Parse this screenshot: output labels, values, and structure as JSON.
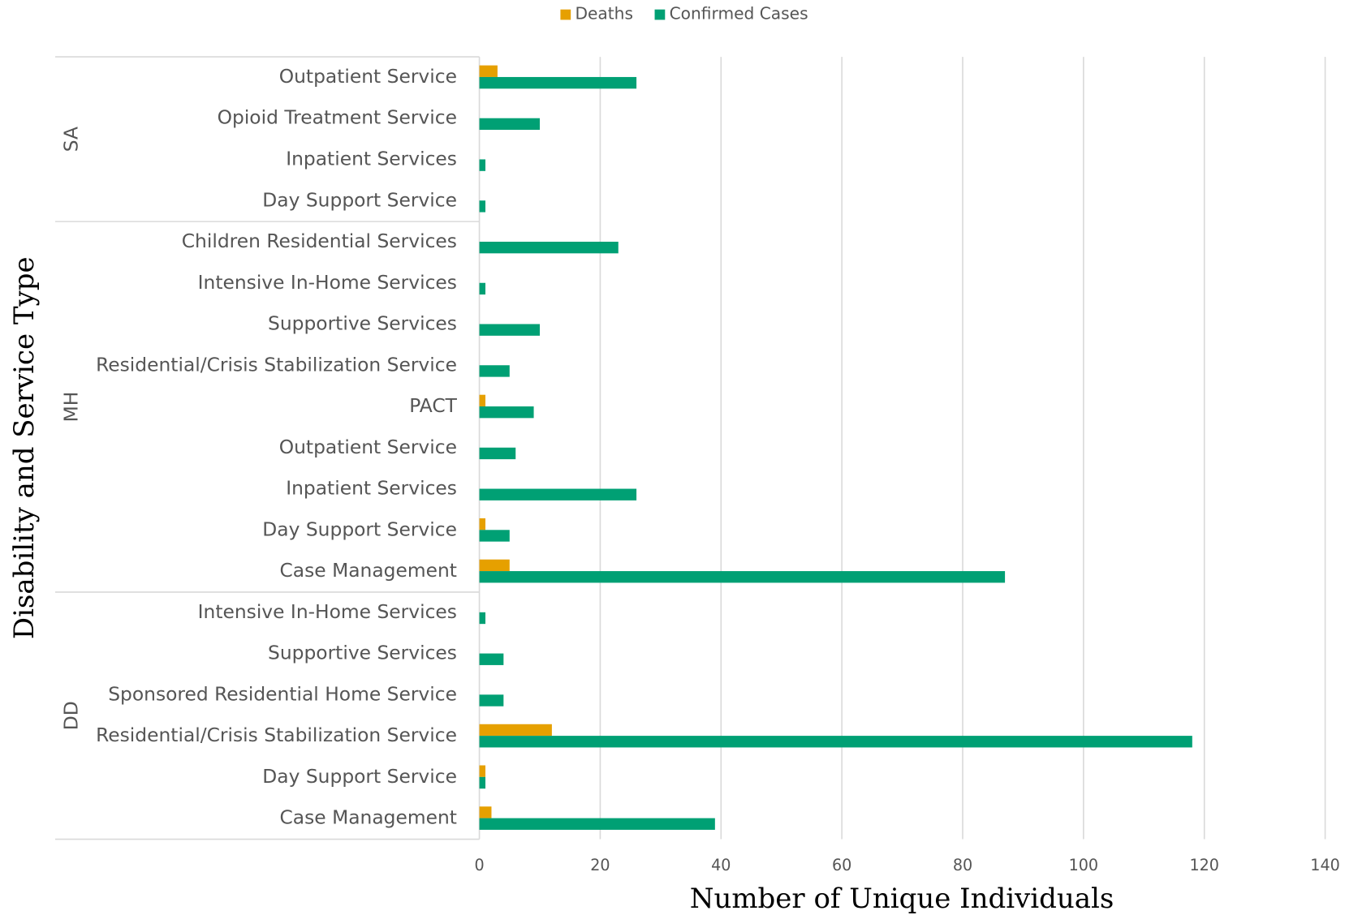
{
  "chart_data": {
    "type": "bar",
    "orientation": "horizontal",
    "x_label": "Number of Unique Individuals",
    "y_label": "Disability and Service Type",
    "groups": [
      {
        "name": "SA",
        "categories": [
          "Outpatient Service",
          "Opioid Treatment Service",
          "Inpatient Services",
          "Day Support Service"
        ]
      },
      {
        "name": "MH",
        "categories": [
          "Children Residential Services",
          "Intensive In-Home Services",
          "Supportive Services",
          "Residential/Crisis Stabilization Service",
          "PACT",
          "Outpatient Service",
          "Inpatient Services",
          "Day Support Service",
          "Case Management"
        ]
      },
      {
        "name": "DD",
        "categories": [
          "Intensive In-Home Services",
          "Supportive Services",
          "Sponsored Residential Home Service",
          "Residential/Crisis Stabilization Service",
          "Day Support Service",
          "Case Management"
        ]
      }
    ],
    "series": [
      {
        "name": "Deaths",
        "color": "#e6a000",
        "values": [
          3,
          0,
          0,
          0,
          0,
          0,
          0,
          0,
          1,
          0,
          0,
          1,
          5,
          0,
          0,
          0,
          12,
          1,
          2
        ]
      },
      {
        "name": "Confirmed Cases",
        "color": "#00a074",
        "values": [
          26,
          10,
          1,
          1,
          23,
          1,
          10,
          5,
          9,
          6,
          26,
          5,
          87,
          1,
          4,
          4,
          118,
          1,
          39
        ]
      }
    ],
    "xlim": [
      0,
      140
    ],
    "xticks": [
      0,
      20,
      40,
      60,
      80,
      100,
      120,
      140
    ],
    "grid": true,
    "legend": "top"
  }
}
